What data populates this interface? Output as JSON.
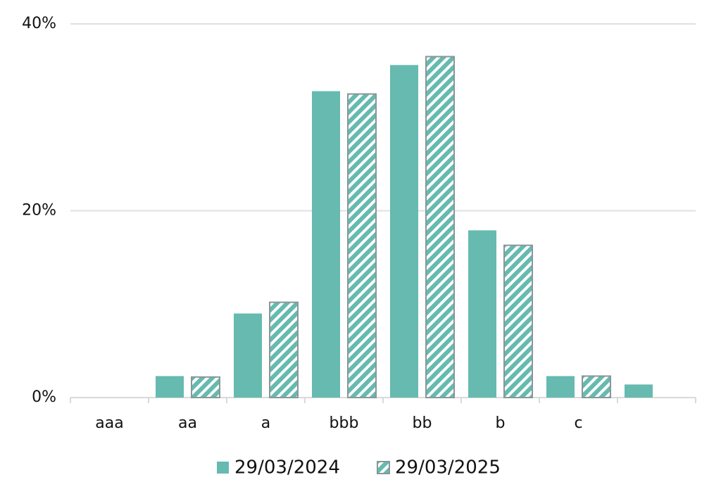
{
  "chart_data": {
    "type": "bar",
    "categories": [
      "aaa",
      "aa",
      "a",
      "bbb",
      "bb",
      "b",
      "c",
      null
    ],
    "series": [
      {
        "name": "29/03/2024",
        "color": "#66bab0",
        "values": [
          0,
          2.3,
          9.0,
          32.8,
          35.6,
          17.9,
          2.3,
          1.4
        ]
      },
      {
        "name": "29/03/2025",
        "color": "#66bab0",
        "pattern": "hatch",
        "values": [
          0,
          2.2,
          10.2,
          32.5,
          36.5,
          16.3,
          2.3,
          0
        ]
      }
    ],
    "ylim": [
      0,
      40
    ],
    "yticks": [
      {
        "value": 0,
        "label": "0%"
      },
      {
        "value": 20,
        "label": "20%"
      },
      {
        "value": 40,
        "label": "40%"
      }
    ],
    "grid": true,
    "legend": "bottom"
  }
}
